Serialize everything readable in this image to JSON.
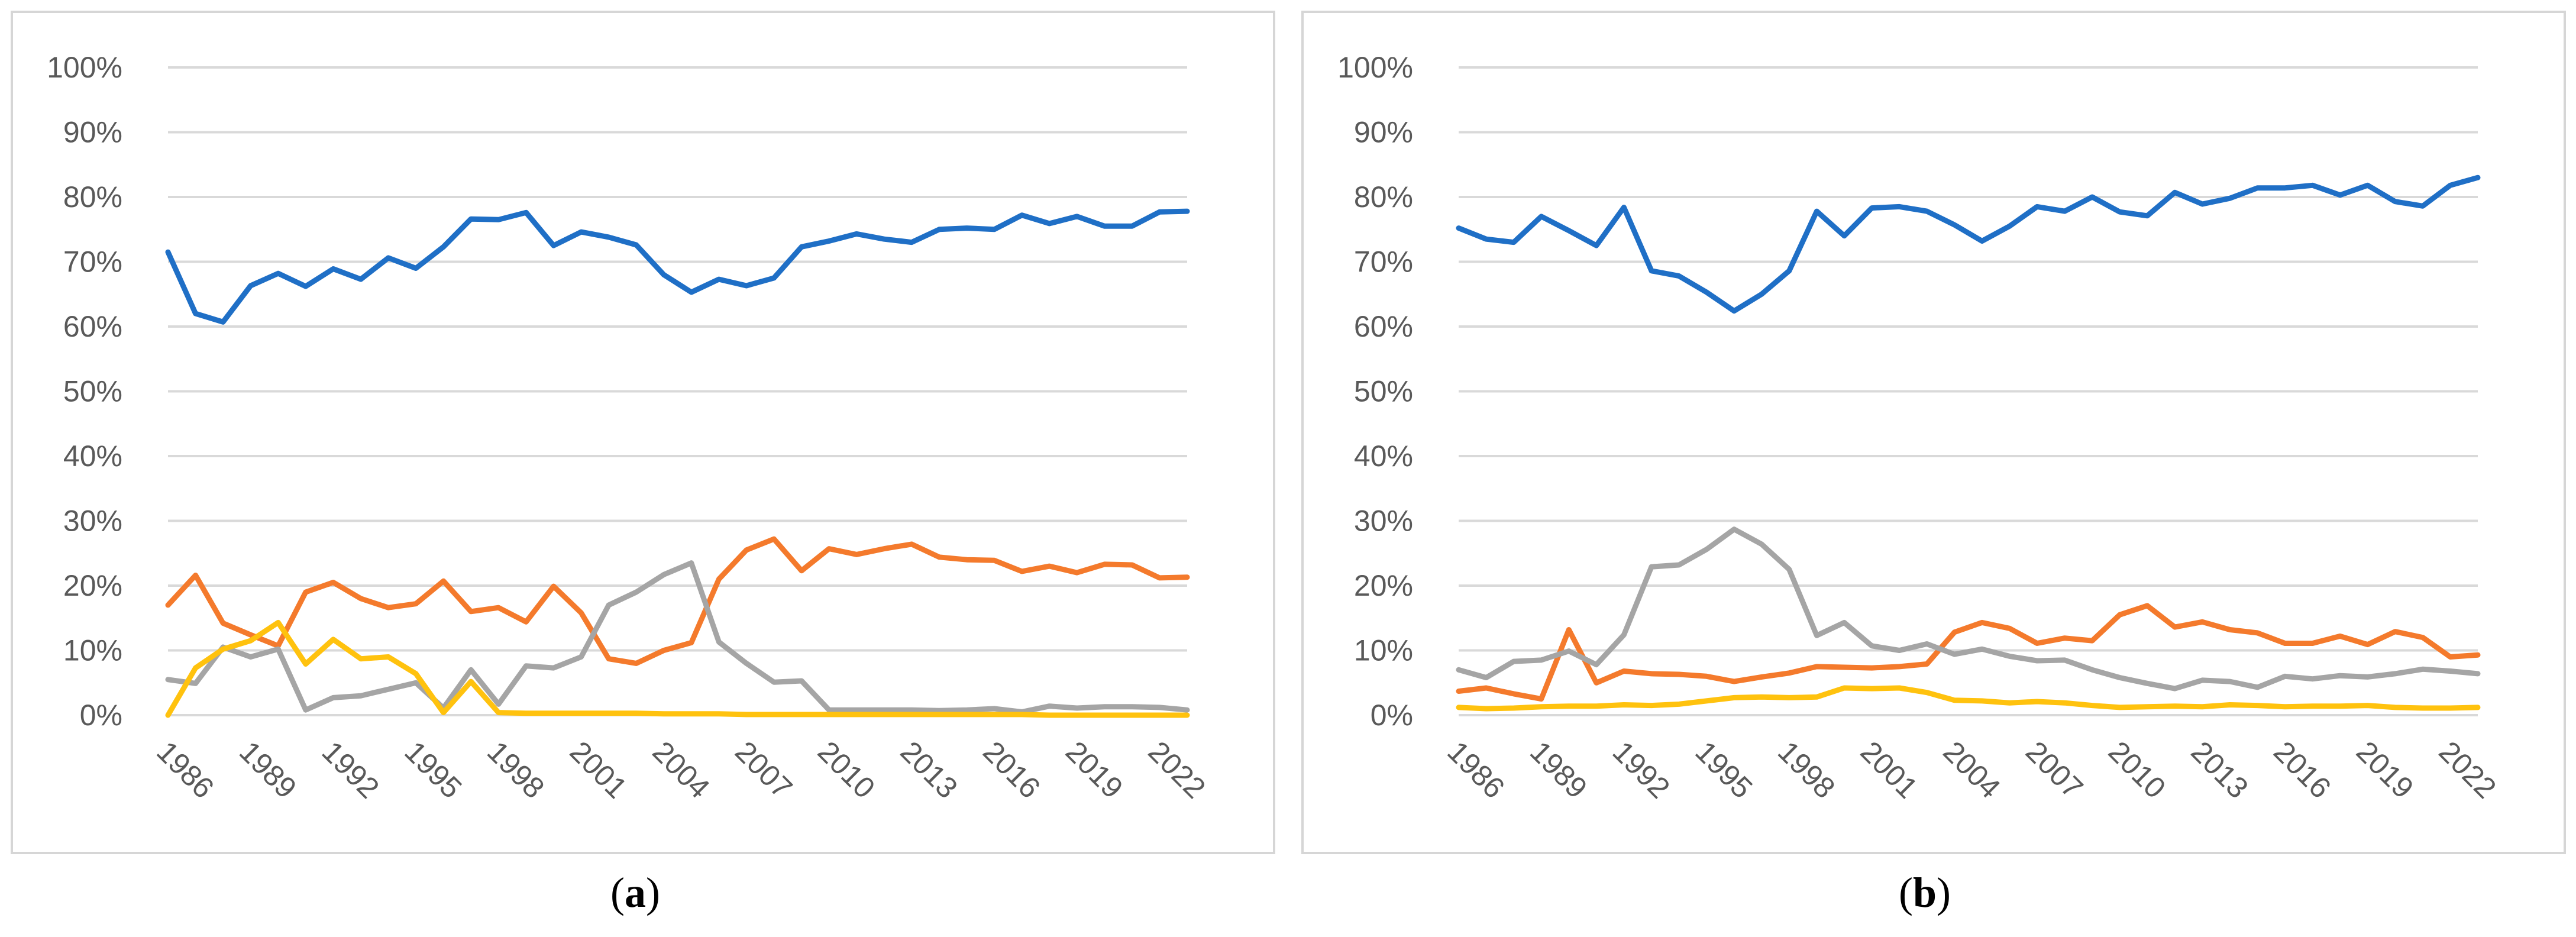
{
  "chart_data": [
    {
      "type": "line",
      "title": "",
      "xlabel": "",
      "ylabel": "",
      "ylim": [
        0,
        100
      ],
      "yticks": [
        "0%",
        "10%",
        "20%",
        "30%",
        "40%",
        "50%",
        "60%",
        "70%",
        "80%",
        "90%",
        "100%"
      ],
      "xticks": [
        "1986",
        "1989",
        "1992",
        "1995",
        "1998",
        "2001",
        "2004",
        "2007",
        "2010",
        "2013",
        "2016",
        "2019",
        "2022"
      ],
      "x": [
        1986,
        1987,
        1988,
        1989,
        1990,
        1991,
        1992,
        1993,
        1994,
        1995,
        1996,
        1997,
        1998,
        1999,
        2000,
        2001,
        2002,
        2003,
        2004,
        2005,
        2006,
        2007,
        2008,
        2009,
        2010,
        2011,
        2012,
        2013,
        2014,
        2015,
        2016,
        2017,
        2018,
        2019,
        2020,
        2021,
        2022,
        2023
      ],
      "series": [
        {
          "name": "blue",
          "color": "#1f6fc6",
          "values": [
            71.5,
            62,
            60.7,
            66.3,
            68.2,
            66.2,
            68.9,
            67.3,
            70.6,
            69,
            72.3,
            76.6,
            76.5,
            77.6,
            72.5,
            74.6,
            73.8,
            72.6,
            68,
            65.3,
            67.3,
            66.3,
            67.5,
            72.3,
            73.2,
            74.3,
            73.5,
            73,
            75,
            75.2,
            75,
            77.2,
            75.9,
            77,
            75.5,
            75.5,
            77.7,
            77.8
          ]
        },
        {
          "name": "orange",
          "color": "#f47a2c",
          "values": [
            17,
            21.6,
            14.2,
            12.4,
            10.7,
            19,
            20.5,
            18,
            16.6,
            17.2,
            20.7,
            16,
            16.6,
            14.4,
            19.9,
            15.8,
            8.7,
            8,
            10,
            11.2,
            21,
            25.5,
            27.2,
            22.3,
            25.7,
            24.8,
            25.7,
            26.4,
            24.4,
            24,
            23.9,
            22.2,
            23,
            22,
            23.3,
            23.2,
            21.2,
            21.3
          ]
        },
        {
          "name": "gray",
          "color": "#a5a5a5",
          "values": [
            5.5,
            4.9,
            10.5,
            9,
            10.2,
            0.8,
            2.7,
            3,
            4,
            5,
            1.1,
            7,
            1.7,
            7.6,
            7.3,
            9,
            17,
            19,
            21.7,
            23.5,
            11.3,
            8,
            5.1,
            5.3,
            0.8,
            0.8,
            0.8,
            0.8,
            0.7,
            0.8,
            1,
            0.5,
            1.4,
            1.1,
            1.3,
            1.3,
            1.2,
            0.8
          ]
        },
        {
          "name": "yellow",
          "color": "#ffc20e",
          "values": [
            0,
            7.3,
            10.2,
            11.5,
            14.3,
            7.9,
            11.7,
            8.7,
            9,
            6.4,
            0.4,
            5.2,
            0.4,
            0.3,
            0.3,
            0.3,
            0.3,
            0.3,
            0.2,
            0.2,
            0.2,
            0.1,
            0.1,
            0.1,
            0.1,
            0.1,
            0.1,
            0.1,
            0.1,
            0.1,
            0.1,
            0.1,
            0,
            0,
            0,
            0,
            0,
            0
          ]
        }
      ]
    },
    {
      "type": "line",
      "title": "",
      "xlabel": "",
      "ylabel": "",
      "ylim": [
        0,
        100
      ],
      "yticks": [
        "0%",
        "10%",
        "20%",
        "30%",
        "40%",
        "50%",
        "60%",
        "70%",
        "80%",
        "90%",
        "100%"
      ],
      "xticks": [
        "1986",
        "1989",
        "1992",
        "1995",
        "1998",
        "2001",
        "2004",
        "2007",
        "2010",
        "2013",
        "2016",
        "2019",
        "2022"
      ],
      "x": [
        1986,
        1987,
        1988,
        1989,
        1990,
        1991,
        1992,
        1993,
        1994,
        1995,
        1996,
        1997,
        1998,
        1999,
        2000,
        2001,
        2002,
        2003,
        2004,
        2005,
        2006,
        2007,
        2008,
        2009,
        2010,
        2011,
        2012,
        2013,
        2014,
        2015,
        2016,
        2017,
        2018,
        2019,
        2020,
        2021,
        2022,
        2023
      ],
      "series": [
        {
          "name": "blue",
          "color": "#1f6fc6",
          "values": [
            75.2,
            73.5,
            73,
            77,
            74.8,
            72.5,
            78.4,
            68.6,
            67.8,
            65.3,
            62.4,
            65,
            68.6,
            77.8,
            74,
            78.3,
            78.5,
            77.8,
            75.7,
            73.2,
            75.5,
            78.5,
            77.8,
            80,
            77.7,
            77.1,
            80.7,
            78.9,
            79.8,
            81.4,
            81.4,
            81.8,
            80.3,
            81.8,
            79.3,
            78.6,
            81.8,
            83
          ]
        },
        {
          "name": "orange",
          "color": "#f47a2c",
          "values": [
            3.7,
            4.2,
            3.3,
            2.5,
            13.2,
            5,
            6.8,
            6.4,
            6.3,
            6,
            5.2,
            5.9,
            6.5,
            7.5,
            7.4,
            7.3,
            7.5,
            7.9,
            12.8,
            14.3,
            13.4,
            11.1,
            11.9,
            11.5,
            15.5,
            16.9,
            13.6,
            14.4,
            13.2,
            12.7,
            11.1,
            11.1,
            12.2,
            10.9,
            12.9,
            12,
            9,
            9.3
          ]
        },
        {
          "name": "gray",
          "color": "#a5a5a5",
          "values": [
            7,
            5.8,
            8.3,
            8.5,
            9.9,
            7.8,
            12.4,
            22.9,
            23.2,
            25.6,
            28.7,
            26.4,
            22.5,
            12.3,
            14.3,
            10.7,
            10,
            11,
            9.4,
            10.2,
            9.1,
            8.4,
            8.5,
            7,
            5.8,
            4.9,
            4.1,
            5.4,
            5.2,
            4.3,
            6,
            5.6,
            6.1,
            5.9,
            6.4,
            7.1,
            6.8,
            6.4
          ]
        },
        {
          "name": "yellow",
          "color": "#ffc20e",
          "values": [
            1.2,
            1,
            1.1,
            1.3,
            1.4,
            1.4,
            1.6,
            1.5,
            1.7,
            2.2,
            2.7,
            2.8,
            2.7,
            2.8,
            4.2,
            4.1,
            4.2,
            3.5,
            2.3,
            2.2,
            1.9,
            2.1,
            1.9,
            1.5,
            1.2,
            1.3,
            1.4,
            1.3,
            1.6,
            1.5,
            1.3,
            1.4,
            1.4,
            1.5,
            1.2,
            1.1,
            1.1,
            1.2
          ]
        }
      ]
    }
  ],
  "captions": [
    {
      "open": "(",
      "letter": "a",
      "close": ")"
    },
    {
      "open": "(",
      "letter": "b",
      "close": ")"
    }
  ]
}
